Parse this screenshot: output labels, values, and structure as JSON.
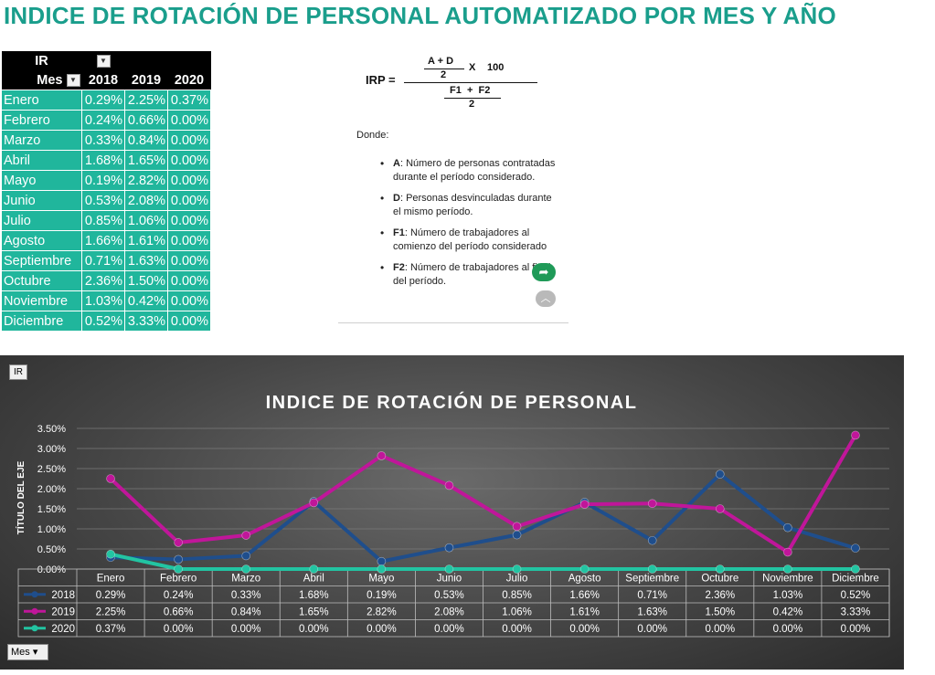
{
  "title": "INDICE DE ROTACIÓN DE PERSONAL AUTOMATIZADO POR MES Y AÑO",
  "pivot": {
    "value_header": "IR",
    "row_header": "Mes",
    "years": [
      "2018",
      "2019",
      "2020"
    ],
    "rows": [
      {
        "mes": "Enero",
        "v": [
          "0.29%",
          "2.25%",
          "0.37%"
        ]
      },
      {
        "mes": "Febrero",
        "v": [
          "0.24%",
          "0.66%",
          "0.00%"
        ]
      },
      {
        "mes": "Marzo",
        "v": [
          "0.33%",
          "0.84%",
          "0.00%"
        ]
      },
      {
        "mes": "Abril",
        "v": [
          "1.68%",
          "1.65%",
          "0.00%"
        ]
      },
      {
        "mes": "Mayo",
        "v": [
          "0.19%",
          "2.82%",
          "0.00%"
        ]
      },
      {
        "mes": "Junio",
        "v": [
          "0.53%",
          "2.08%",
          "0.00%"
        ]
      },
      {
        "mes": "Julio",
        "v": [
          "0.85%",
          "1.06%",
          "0.00%"
        ]
      },
      {
        "mes": "Agosto",
        "v": [
          "1.66%",
          "1.61%",
          "0.00%"
        ]
      },
      {
        "mes": "Septiembre",
        "v": [
          "0.71%",
          "1.63%",
          "0.00%"
        ]
      },
      {
        "mes": "Octubre",
        "v": [
          "2.36%",
          "1.50%",
          "0.00%"
        ]
      },
      {
        "mes": "Noviembre",
        "v": [
          "1.03%",
          "0.42%",
          "0.00%"
        ]
      },
      {
        "mes": "Diciembre",
        "v": [
          "0.52%",
          "3.33%",
          "0.00%"
        ]
      }
    ]
  },
  "formula": {
    "lhs": "IRP =",
    "num_top": "A + D",
    "num_bottom": "2",
    "times": "X",
    "hundred": "100",
    "den_top": "F1  +  F2",
    "den_bottom": "2",
    "donde": "Donde:",
    "defs": [
      {
        "term": "A",
        "text": ": Número de personas contratadas durante el período considerado."
      },
      {
        "term": "D",
        "text": ": Personas desvinculadas durante el mismo período."
      },
      {
        "term": "F1",
        "text": ": Número de trabajadores al comienzo del período considerado"
      },
      {
        "term": "F2",
        "text": ": Número de trabajadores al final del período."
      }
    ],
    "share_icon": "share-arrow-icon",
    "up_icon": "chevron-up-icon"
  },
  "chart_data": {
    "type": "line",
    "title": "INDICE DE ROTACIÓN DE PERSONAL",
    "ylabel": "TÍTULO DEL EJE",
    "ylim": [
      0,
      3.5
    ],
    "yticks": [
      "0.00%",
      "0.50%",
      "1.00%",
      "1.50%",
      "2.00%",
      "2.50%",
      "3.00%",
      "3.50%"
    ],
    "categories": [
      "Enero",
      "Febrero",
      "Marzo",
      "Abril",
      "Mayo",
      "Junio",
      "Julio",
      "Agosto",
      "Septiembre",
      "Octubre",
      "Noviembre",
      "Diciembre"
    ],
    "grid": true,
    "legend": "data-table",
    "field_button": "IR",
    "axis_button": "Mes",
    "series": [
      {
        "name": "2018",
        "color": "#1f4e8c",
        "values": [
          0.29,
          0.24,
          0.33,
          1.68,
          0.19,
          0.53,
          0.85,
          1.66,
          0.71,
          2.36,
          1.03,
          0.52
        ],
        "labels": [
          "0.29%",
          "0.24%",
          "0.33%",
          "1.68%",
          "0.19%",
          "0.53%",
          "0.85%",
          "1.66%",
          "0.71%",
          "2.36%",
          "1.03%",
          "0.52%"
        ]
      },
      {
        "name": "2019",
        "color": "#c0169a",
        "values": [
          2.25,
          0.66,
          0.84,
          1.65,
          2.82,
          2.08,
          1.06,
          1.61,
          1.63,
          1.5,
          0.42,
          3.33
        ],
        "labels": [
          "2.25%",
          "0.66%",
          "0.84%",
          "1.65%",
          "2.82%",
          "2.08%",
          "1.06%",
          "1.61%",
          "1.63%",
          "1.50%",
          "0.42%",
          "3.33%"
        ]
      },
      {
        "name": "2020",
        "color": "#22c4a2",
        "values": [
          0.37,
          0.0,
          0.0,
          0.0,
          0.0,
          0.0,
          0.0,
          0.0,
          0.0,
          0.0,
          0.0,
          0.0
        ],
        "labels": [
          "0.37%",
          "0.00%",
          "0.00%",
          "0.00%",
          "0.00%",
          "0.00%",
          "0.00%",
          "0.00%",
          "0.00%",
          "0.00%",
          "0.00%",
          "0.00%"
        ]
      }
    ]
  }
}
